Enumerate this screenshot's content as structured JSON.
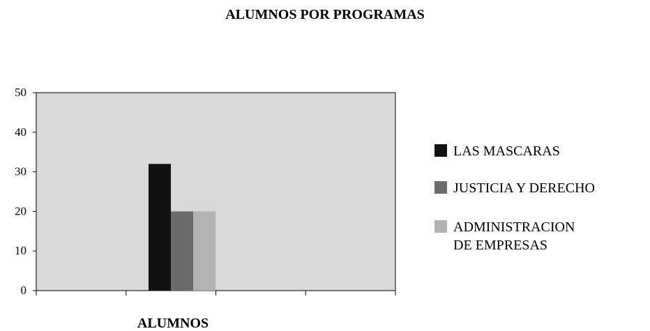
{
  "chart_data": {
    "type": "bar",
    "title": "ALUMNOS POR PROGRAMAS",
    "categories": [
      "ALUMNOS"
    ],
    "series": [
      {
        "name": "LAS MASCARAS",
        "values": [
          32
        ],
        "color": "#111111"
      },
      {
        "name": "JUSTICIA Y DERECHO",
        "values": [
          20
        ],
        "color": "#6b6b6b"
      },
      {
        "name": "ADMINISTRACION DE EMPRESAS",
        "values": [
          20
        ],
        "color": "#b3b3b3"
      }
    ],
    "yticks": [
      "50",
      "40",
      "30",
      "20",
      "10",
      "0"
    ],
    "ylim": [
      0,
      50
    ],
    "plot_background": "#d9d9d9",
    "legend": "right",
    "grid": false
  }
}
